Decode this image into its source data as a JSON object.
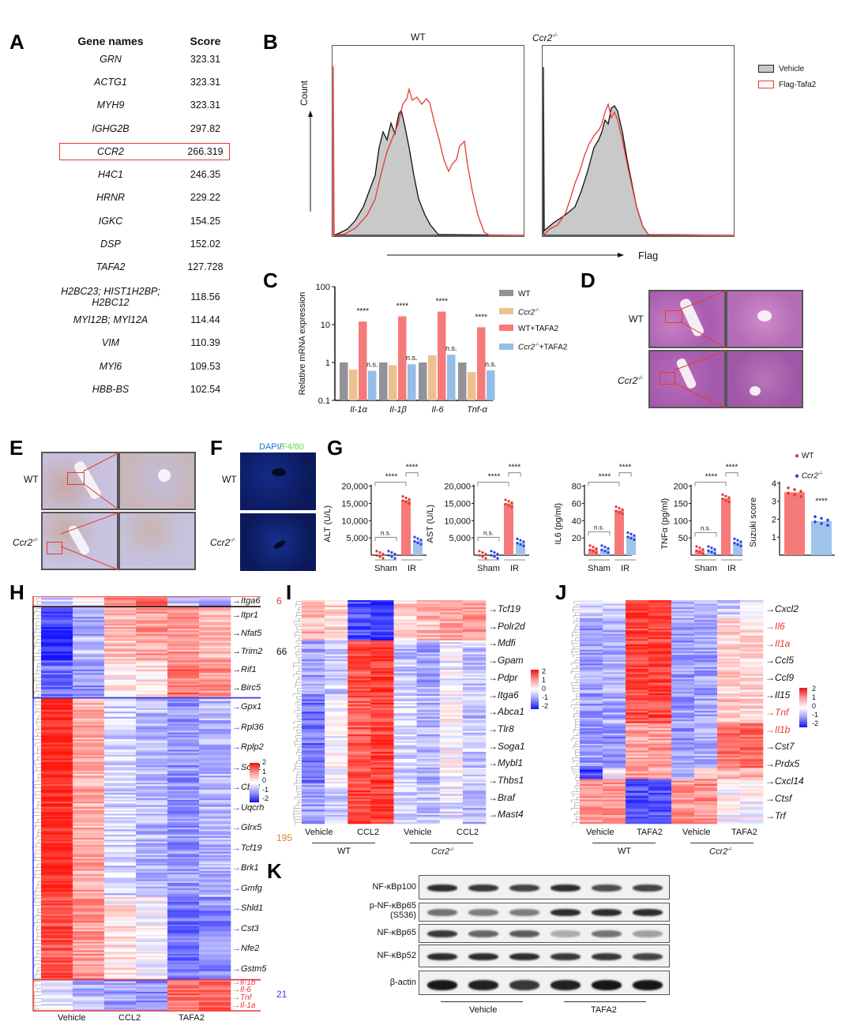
{
  "panels": {
    "A": {
      "letter": "A",
      "col_gene": "Gene names",
      "col_score": "Score",
      "rows": [
        {
          "gene": "GRN",
          "score": "323.31"
        },
        {
          "gene": "ACTG1",
          "score": "323.31"
        },
        {
          "gene": "MYH9",
          "score": "323.31"
        },
        {
          "gene": "IGHG2B",
          "score": "297.82"
        },
        {
          "gene": "CCR2",
          "score": "266.319",
          "highlight": true
        },
        {
          "gene": "H4C1",
          "score": "246.35"
        },
        {
          "gene": "HRNR",
          "score": "229.22"
        },
        {
          "gene": "IGKC",
          "score": "154.25"
        },
        {
          "gene": "DSP",
          "score": "152.02"
        },
        {
          "gene": "TAFA2",
          "score": "127.728"
        },
        {
          "gene": "H2BC23; HIST1H2BP; H2BC12",
          "score": "118.56"
        },
        {
          "gene": "MYl12B; MYl12A",
          "score": "114.44"
        },
        {
          "gene": "VIM",
          "score": "110.39"
        },
        {
          "gene": "MYl6",
          "score": "109.53"
        },
        {
          "gene": "HBB-BS",
          "score": "102.54"
        }
      ]
    },
    "B": {
      "letter": "B",
      "title_wt": "WT",
      "title_ko": "Ccr2",
      "ko_sup": "-/-",
      "ylabel": "Count",
      "xlabel": "Flag",
      "legend": [
        {
          "label": "Vehicle",
          "color": "#222222",
          "fill": "#cccccc"
        },
        {
          "label": "Flag-Tafa2",
          "color": "#e53935",
          "fill": "none"
        }
      ]
    },
    "C": {
      "letter": "C",
      "legend": [
        {
          "label": "WT",
          "color": "#929299"
        },
        {
          "label": "Ccr2",
          "sup": "-/-",
          "color": "#eec08f"
        },
        {
          "label": "WT+TAFA2",
          "color": "#f77a7a"
        },
        {
          "label": "Ccr2",
          "sup": "-/-",
          "suffix": "+TAFA2",
          "color": "#94bde8"
        }
      ]
    },
    "D": {
      "letter": "D",
      "row_labels": [
        "WT",
        "Ccr2"
      ],
      "ko_sup": "-/-"
    },
    "E": {
      "letter": "E",
      "row_labels": [
        "WT",
        "Ccr2"
      ],
      "ko_sup": "-/-"
    },
    "F": {
      "letter": "F",
      "title_dapi": "DAPI",
      "title_sep": "/",
      "title_f480": "F4/80",
      "row_labels": [
        "WT",
        "Ccr2"
      ],
      "ko_sup": "-/-"
    },
    "G": {
      "letter": "G",
      "group_labels": [
        "Sham",
        "IR"
      ],
      "sig": "****",
      "ns": "n.s.",
      "legend": [
        {
          "label": "WT",
          "color": "#e53935"
        },
        {
          "label": "Ccr2",
          "sup": "-/-",
          "color": "#2742e8"
        }
      ]
    },
    "H": {
      "letter": "H",
      "columns": [
        "Vehicle",
        "CCL2",
        "TAFA2"
      ],
      "clusters": [
        {
          "count": "6",
          "count_color": "#e53935",
          "box_color": "#e53935",
          "genes": [
            "Itga6"
          ],
          "gene_color": "#111111"
        },
        {
          "count": "66",
          "count_color": "#111111",
          "box_color": "#111111",
          "genes": [
            "Itpr1",
            "Nfat5",
            "Trim2",
            "Rif1",
            "Birc5"
          ],
          "gene_color": "#111111"
        },
        {
          "count": "195",
          "count_color": "#d4862a",
          "box_color": "#3a3af0",
          "genes": [
            "Gpx1",
            "Rpl36",
            "Rplp2",
            "Sod1",
            "Cbr3",
            "Uqcrh",
            "Glrx5",
            "Tcf19",
            "Brk1",
            "Gmfg",
            "Shld1",
            "Cst3",
            "Nfe2",
            "Gstm5"
          ],
          "gene_color": "#111111"
        },
        {
          "count": "21",
          "count_color": "#3a3af0",
          "box_color": "#e53935",
          "genes": [
            "Il-1b",
            "Il-6",
            "Tnf",
            "Il-1a"
          ],
          "gene_color": "#e53935"
        }
      ],
      "scale": [
        "2",
        "1",
        "0",
        "-1",
        "-2"
      ]
    },
    "I": {
      "letter": "I",
      "genes": [
        "Tcf19",
        "Polr2d",
        "Mdfi",
        "Gpam",
        "Pdpr",
        "Itga6",
        "Abca1",
        "Tlr8",
        "Soga1",
        "Mybl1",
        "Thbs1",
        "Braf",
        "Mast4"
      ],
      "columns": [
        "Vehicle",
        "CCL2",
        "Vehicle",
        "CCL2"
      ],
      "groups": [
        "WT",
        "Ccr2"
      ],
      "ko_sup": "-/-",
      "scale": [
        "2",
        "1",
        "0",
        "-1",
        "-2"
      ]
    },
    "J": {
      "letter": "J",
      "genes": [
        {
          "name": "Cxcl2",
          "color": "#111111"
        },
        {
          "name": "Il6",
          "color": "#e53935"
        },
        {
          "name": "Il1a",
          "color": "#e53935"
        },
        {
          "name": "Ccl5",
          "color": "#111111"
        },
        {
          "name": "Ccl9",
          "color": "#111111"
        },
        {
          "name": "Il15",
          "color": "#111111"
        },
        {
          "name": "Tnf",
          "color": "#e53935"
        },
        {
          "name": "Il1b",
          "color": "#e53935"
        },
        {
          "name": "Cst7",
          "color": "#111111"
        },
        {
          "name": "Prdx5",
          "color": "#111111"
        },
        {
          "name": "Cxcl14",
          "color": "#111111"
        },
        {
          "name": "Ctsf",
          "color": "#111111"
        },
        {
          "name": "Trf",
          "color": "#111111"
        }
      ],
      "columns": [
        "Vehicle",
        "TAFA2",
        "Vehicle",
        "TAFA2"
      ],
      "groups": [
        "WT",
        "Ccr2"
      ],
      "ko_sup": "-/-",
      "scale": [
        "2",
        "1",
        "0",
        "-1",
        "-2"
      ]
    },
    "K": {
      "letter": "K",
      "blots": [
        "NF-κBp100",
        "p-NF-κBp65",
        "NF-κBp65",
        "NF-κBp52",
        "β-actin"
      ],
      "blot_sub": "(S536)",
      "groups": [
        "Vehicle",
        "TAFA2"
      ]
    }
  },
  "chart_data": [
    {
      "id": "C",
      "type": "bar",
      "ylabel": "Relative mRNA expression",
      "yscale": "log",
      "ylim": [
        0.1,
        100
      ],
      "yticks": [
        "0.1",
        "1",
        "10",
        "100"
      ],
      "categories": [
        "Il-1α",
        "Il-1β",
        "Il-6",
        "Tnf-α"
      ],
      "series": [
        {
          "name": "WT",
          "values": [
            1.0,
            1.0,
            1.0,
            1.0
          ]
        },
        {
          "name": "Ccr2-/-",
          "values": [
            0.65,
            0.85,
            1.55,
            0.56
          ]
        },
        {
          "name": "WT+TAFA2",
          "values": [
            12,
            16.5,
            22,
            8.5
          ]
        },
        {
          "name": "Ccr2-/-+TAFA2",
          "values": [
            0.6,
            0.9,
            1.6,
            0.62
          ]
        }
      ],
      "annotations": [
        {
          "category": "Il-1α",
          "sig": "****",
          "ns": "n.s."
        },
        {
          "category": "Il-1β",
          "sig": "****",
          "ns": "n.s."
        },
        {
          "category": "Il-6",
          "sig": "****",
          "ns": "n.s."
        },
        {
          "category": "Tnf-α",
          "sig": "****",
          "ns": "n.s."
        }
      ]
    },
    {
      "id": "G-ALT",
      "type": "bar",
      "ylabel": "ALT (U/L)",
      "ylim": [
        0,
        20000
      ],
      "yticks": [
        "5,000",
        "10,000",
        "15,000",
        "20,000"
      ],
      "categories": [
        "WT Sham",
        "Ccr2-/- Sham",
        "WT IR",
        "Ccr2-/- IR"
      ],
      "values": [
        150,
        150,
        16000,
        4200
      ]
    },
    {
      "id": "G-AST",
      "type": "bar",
      "ylabel": "AST (U/L)",
      "ylim": [
        0,
        20000
      ],
      "yticks": [
        "5,000",
        "10,000",
        "15,000",
        "20,000"
      ],
      "categories": [
        "WT Sham",
        "Ccr2-/- Sham",
        "WT IR",
        "Ccr2-/- IR"
      ],
      "values": [
        150,
        150,
        15000,
        3700
      ]
    },
    {
      "id": "G-IL6",
      "type": "bar",
      "ylabel": "IL6 (pg/ml)",
      "ylim": [
        0,
        80
      ],
      "yticks": [
        "20",
        "40",
        "60",
        "80"
      ],
      "categories": [
        "WT Sham",
        "Ccr2-/- Sham",
        "WT IR",
        "Ccr2-/- IR"
      ],
      "values": [
        7,
        7,
        52,
        22
      ]
    },
    {
      "id": "G-TNF",
      "type": "bar",
      "ylabel": "TNFα (pg/ml)",
      "ylim": [
        0,
        200
      ],
      "yticks": [
        "50",
        "100",
        "150",
        "200"
      ],
      "categories": [
        "WT Sham",
        "Ccr2-/- Sham",
        "WT IR",
        "Ccr2-/- IR"
      ],
      "values": [
        15,
        15,
        165,
        37
      ]
    },
    {
      "id": "G-Suzuki",
      "type": "bar",
      "ylabel": "Suzuki score",
      "ylim": [
        0,
        4
      ],
      "yticks": [
        "1",
        "2",
        "3",
        "4"
      ],
      "categories": [
        "WT",
        "Ccr2-/-"
      ],
      "values": [
        3.5,
        1.9
      ]
    }
  ]
}
